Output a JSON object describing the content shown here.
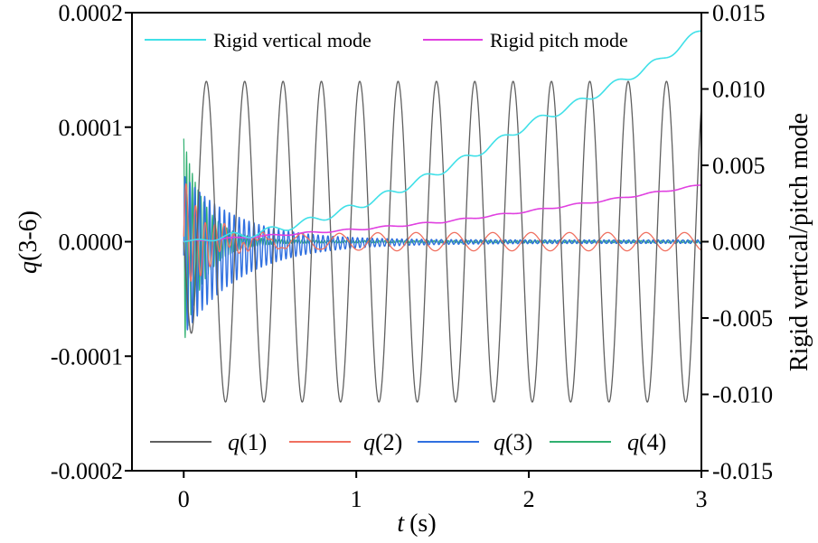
{
  "chart_data": {
    "type": "line",
    "xlabel_var": "t",
    "xlabel_unit": "(s)",
    "ylabel_left_var": "q",
    "ylabel_left_rest": "(3-6)",
    "ylabel_right": "Rigid vertical/pitch mode",
    "xlim": [
      -0.3,
      3
    ],
    "ylim_left": [
      -0.0002,
      0.0002
    ],
    "ylim_right": [
      -0.015,
      0.015
    ],
    "x_ticks": [
      "0",
      "1",
      "2",
      "3"
    ],
    "x_tick_values": [
      0,
      1,
      2,
      3
    ],
    "y_left_ticks": [
      "0.0002",
      "0.0001",
      "0.0000",
      "-0.0001",
      "-0.0002"
    ],
    "y_left_tick_values": [
      0.0002,
      0.0001,
      0.0,
      -0.0001,
      -0.0002
    ],
    "y_right_ticks": [
      "0.015",
      "0.010",
      "0.005",
      "0.000",
      "-0.005",
      "-0.010",
      "-0.015"
    ],
    "y_right_tick_values": [
      0.015,
      0.01,
      0.005,
      0.0,
      -0.005,
      -0.01,
      -0.015
    ],
    "legend_top": [
      {
        "name": "Rigid vertical mode",
        "color": "#40e0e8"
      },
      {
        "name": "Rigid pitch mode",
        "color": "#e040e0"
      }
    ],
    "legend_bottom": [
      {
        "var": "q",
        "arg": "(1)",
        "color": "#606060"
      },
      {
        "var": "q",
        "arg": "(2)",
        "color": "#f07060"
      },
      {
        "var": "q",
        "arg": "(3)",
        "color": "#3070e0"
      },
      {
        "var": "q",
        "arg": "(4)",
        "color": "#30b070"
      }
    ],
    "series": [
      {
        "id": "q1",
        "axis": "right",
        "color": "#606060",
        "description_values": "oscillation about 0",
        "amplitude": 0.0105,
        "frequency_hz": 4.5,
        "start": 0.0
      },
      {
        "id": "q2",
        "axis": "left",
        "color": "#f07060",
        "amplitude_start": 5e-05,
        "amplitude_end": 8e-06,
        "frequency_hz": 4.5
      },
      {
        "id": "q3",
        "axis": "left",
        "color": "#3070e0",
        "amplitude_start": 7e-05,
        "amplitude_end": 1.5e-06,
        "frequency_hz": 35
      },
      {
        "id": "q4",
        "axis": "left",
        "color": "#30b070",
        "amplitude_start": 9e-05,
        "amplitude_end": 1e-06,
        "frequency_hz": 60
      },
      {
        "id": "rigid_vertical",
        "axis": "right",
        "color": "#40e0e8",
        "x": [
          0,
          0.25,
          0.5,
          0.75,
          1.0,
          1.25,
          1.5,
          1.75,
          2.0,
          2.25,
          2.5,
          2.75,
          3.0
        ],
        "y": [
          0.0,
          0.0003,
          0.0007,
          0.0014,
          0.0023,
          0.0034,
          0.0047,
          0.0061,
          0.0077,
          0.0089,
          0.0103,
          0.0118,
          0.0138
        ]
      },
      {
        "id": "rigid_pitch",
        "axis": "right",
        "color": "#e040e0",
        "x": [
          0,
          0.5,
          1.0,
          1.5,
          2.0,
          2.5,
          3.0
        ],
        "y": [
          0.0,
          0.0004,
          0.0008,
          0.0013,
          0.002,
          0.0028,
          0.0037
        ]
      }
    ]
  }
}
